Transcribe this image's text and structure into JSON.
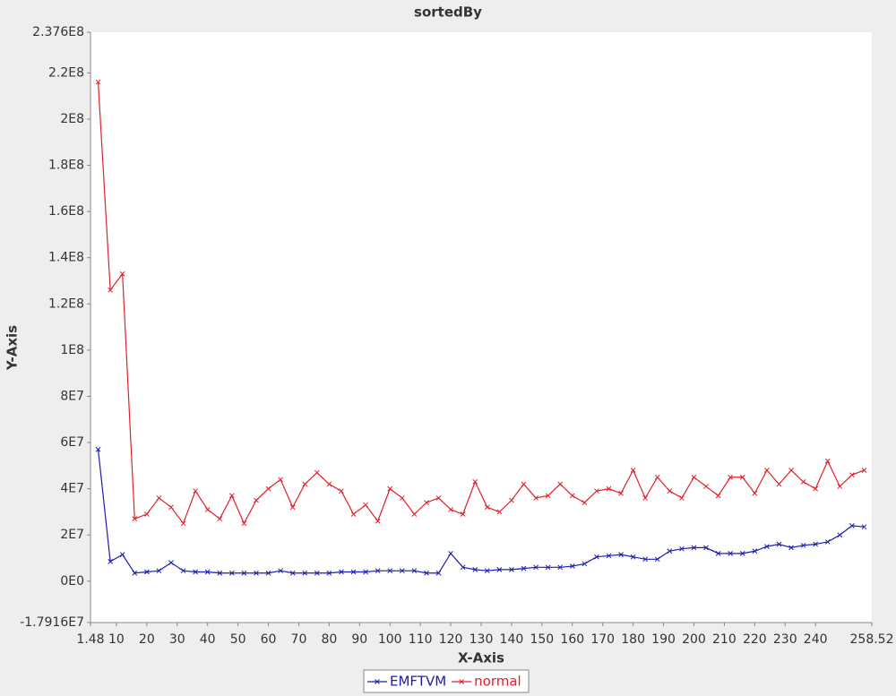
{
  "chart_data": {
    "type": "line",
    "title": "sortedBy",
    "x_label": "X-Axis",
    "y_label": "Y-Axis",
    "x": [
      4,
      8,
      12,
      16,
      20,
      24,
      28,
      32,
      36,
      40,
      44,
      48,
      52,
      56,
      60,
      64,
      68,
      72,
      76,
      80,
      84,
      88,
      92,
      96,
      100,
      104,
      108,
      112,
      116,
      120,
      124,
      128,
      132,
      136,
      140,
      144,
      148,
      152,
      156,
      160,
      164,
      168,
      172,
      176,
      180,
      184,
      188,
      192,
      196,
      200,
      204,
      208,
      212,
      216,
      220,
      224,
      228,
      232,
      236,
      240,
      244,
      248,
      252,
      256
    ],
    "series": [
      {
        "name": "EMFTVM",
        "color": "#1c1cb0",
        "values": [
          57000000,
          8500000,
          11500000,
          3500000,
          4000000,
          4500000,
          8000000,
          4500000,
          4000000,
          4000000,
          3500000,
          3500000,
          3500000,
          3500000,
          3500000,
          4500000,
          3500000,
          3500000,
          3500000,
          3500000,
          4000000,
          4000000,
          4000000,
          4500000,
          4500000,
          4500000,
          4500000,
          3500000,
          3500000,
          12000000,
          6000000,
          5000000,
          4500000,
          5000000,
          5000000,
          5500000,
          6000000,
          6000000,
          6000000,
          6500000,
          7500000,
          10500000,
          11000000,
          11500000,
          10500000,
          9500000,
          9500000,
          13000000,
          14000000,
          14500000,
          14500000,
          12000000,
          12000000,
          12000000,
          13000000,
          15000000,
          16000000,
          14500000,
          15500000,
          16000000,
          17000000,
          20000000,
          24000000,
          23500000
        ]
      },
      {
        "name": "normal",
        "color": "#e0202a",
        "values": [
          216000000,
          126000000,
          133000000,
          27000000,
          29000000,
          36000000,
          32000000,
          25000000,
          39000000,
          31000000,
          27000000,
          37000000,
          25000000,
          35000000,
          40000000,
          44000000,
          32000000,
          42000000,
          47000000,
          42000000,
          39000000,
          29000000,
          33000000,
          26000000,
          40000000,
          36000000,
          29000000,
          34000000,
          36000000,
          31000000,
          29000000,
          43000000,
          32000000,
          30000000,
          35000000,
          42000000,
          36000000,
          37000000,
          42000000,
          37000000,
          34000000,
          39000000,
          40000000,
          38000000,
          48000000,
          36000000,
          45000000,
          39000000,
          36000000,
          45000000,
          41000000,
          37000000,
          45000000,
          45000000,
          38000000,
          48000000,
          42000000,
          48000000,
          43000000,
          40000000,
          52000000,
          41000000,
          46000000,
          48000000
        ]
      }
    ],
    "xlim": [
      1.48,
      258.52
    ],
    "xticks": [
      1.48,
      10,
      20,
      30,
      40,
      50,
      60,
      70,
      80,
      90,
      100,
      110,
      120,
      130,
      140,
      150,
      160,
      170,
      180,
      190,
      200,
      210,
      220,
      230,
      240,
      258.52
    ],
    "ylim": [
      -17916000,
      237600000
    ],
    "yticks": [
      {
        "value": -17916000,
        "label": "-1.7916E7"
      },
      {
        "value": 0,
        "label": "0E0"
      },
      {
        "value": 20000000,
        "label": "2E7"
      },
      {
        "value": 40000000,
        "label": "4E7"
      },
      {
        "value": 60000000,
        "label": "6E7"
      },
      {
        "value": 80000000,
        "label": "8E7"
      },
      {
        "value": 100000000,
        "label": "1E8"
      },
      {
        "value": 120000000,
        "label": "1.2E8"
      },
      {
        "value": 140000000,
        "label": "1.4E8"
      },
      {
        "value": 160000000,
        "label": "1.6E8"
      },
      {
        "value": 180000000,
        "label": "1.8E8"
      },
      {
        "value": 200000000,
        "label": "2E8"
      },
      {
        "value": 220000000,
        "label": "2.2E8"
      },
      {
        "value": 237600000,
        "label": "2.376E8"
      }
    ],
    "grid": false,
    "legend": "bottom"
  }
}
